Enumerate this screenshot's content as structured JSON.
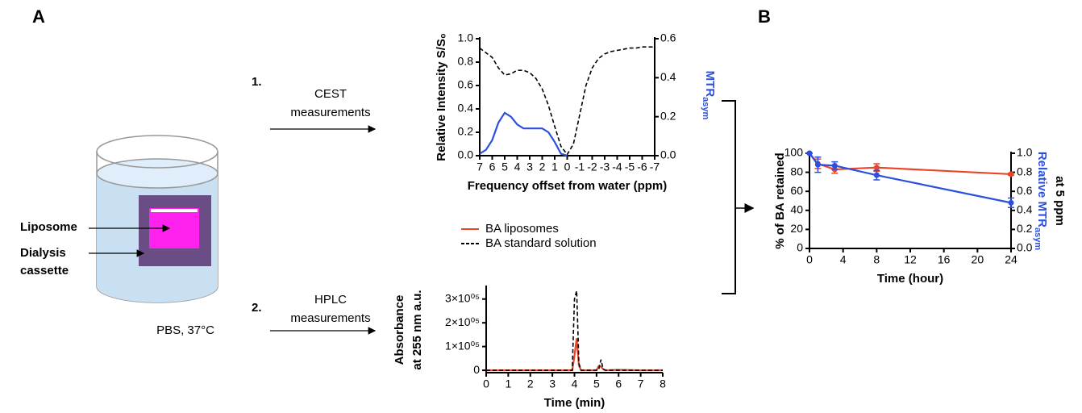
{
  "panel_labels": [
    "A",
    "B"
  ],
  "diagram": {
    "liposome": "Liposome",
    "cassette": [
      "Dialysis",
      "cassette"
    ],
    "medium": "PBS, 37°C",
    "steps": [
      {
        "number": "1.",
        "text": [
          "CEST",
          "measurements"
        ]
      },
      {
        "number": "2.",
        "text": [
          "HPLC",
          "measurements"
        ]
      }
    ]
  },
  "chart_data": [
    {
      "type": "line",
      "xlabel": "Frequency offset from water (ppm)",
      "ylabel": "Relative Intensity S/S₀",
      "y2label": {
        "text": "MTR",
        "sub": "asym"
      },
      "x": [
        7,
        6.5,
        6,
        5.5,
        5,
        4.5,
        4,
        3.5,
        3,
        2.5,
        2,
        1.5,
        1,
        0.5,
        0,
        -0.5,
        -1,
        -1.5,
        -2,
        -2.5,
        -3,
        -3.5,
        -4,
        -4.5,
        -5,
        -5.5,
        -6,
        -6.5,
        -7
      ],
      "xlim": [
        7,
        -7
      ],
      "xticks": [
        7,
        6,
        5,
        4,
        3,
        2,
        1,
        0,
        -1,
        -2,
        -3,
        -4,
        -5,
        -6,
        -7
      ],
      "ylim": [
        0,
        1
      ],
      "yticks": [
        {
          "value": 0,
          "label": "0.0"
        },
        0.2,
        0.4,
        0.6,
        0.8,
        {
          "value": 1,
          "label": "1.0"
        }
      ],
      "y2lim": [
        0,
        0.6
      ],
      "y2ticks": [
        {
          "value": 0,
          "label": "0.0"
        },
        0.2,
        0.4,
        0.6
      ],
      "series": [
        {
          "color": "#000000",
          "dash": true,
          "values": [
            0.92,
            0.88,
            0.84,
            0.75,
            0.69,
            0.7,
            0.73,
            0.73,
            0.71,
            0.66,
            0.57,
            0.43,
            0.25,
            0.08,
            0.01,
            0.1,
            0.35,
            0.6,
            0.75,
            0.83,
            0.87,
            0.89,
            0.9,
            0.91,
            0.92,
            0.92,
            0.93,
            0.93,
            0.93
          ]
        },
        {
          "color": "#2b50e0",
          "axis": "y2",
          "values": [
            0.01,
            0.03,
            0.08,
            0.17,
            0.22,
            0.2,
            0.16,
            0.14,
            0.14,
            0.14,
            0.14,
            0.12,
            0.07,
            0.01,
            0,
            null,
            null,
            null,
            null,
            null,
            null,
            null,
            null,
            null,
            null,
            null,
            null,
            null,
            null
          ]
        }
      ]
    },
    {
      "type": "line",
      "xlabel": "Time (min)",
      "ylabel": [
        "Absorbance",
        "at 255 nm a.u."
      ],
      "x": [
        0,
        1,
        2,
        3,
        3.9,
        4.0,
        4.1,
        4.2,
        4.3,
        5.0,
        5.1,
        5.2,
        5.3,
        5.4,
        6,
        7,
        8
      ],
      "xlim": [
        0,
        8
      ],
      "xticks": [
        0,
        1,
        2,
        3,
        4,
        5,
        6,
        7,
        8
      ],
      "ylim": [
        -10000,
        350000
      ],
      "yticks": [
        0,
        {
          "value": 100000,
          "label": "1×10⁰⁵"
        },
        {
          "value": 200000,
          "label": "2×10⁰⁵"
        },
        {
          "value": 300000,
          "label": "3×10⁰⁵"
        }
      ],
      "legend": "top",
      "series": [
        {
          "name": "BA liposomes",
          "color": "#e8452a",
          "values": [
            0,
            0,
            0,
            0,
            0,
            60000,
            135000,
            20000,
            0,
            0,
            18000,
            15000,
            5000,
            0,
            2000,
            0,
            0
          ]
        },
        {
          "name": "BA standard solution",
          "color": "#000000",
          "dash": true,
          "values": [
            0,
            0,
            0,
            0,
            0,
            300000,
            335000,
            30000,
            0,
            0,
            2000,
            45000,
            5000,
            0,
            0,
            0,
            0
          ]
        }
      ]
    },
    {
      "type": "line",
      "xlabel": "Time (hour)",
      "ylabel": "% of BA retained",
      "ylabel_color": "#e8452a",
      "y2label": {
        "text": "Relative MTR",
        "sub": "asym",
        "line2": "at 5 ppm"
      },
      "y2label_color": "#2b50e0",
      "x": [
        0,
        1,
        3,
        8,
        24
      ],
      "xlim": [
        0,
        24
      ],
      "xticks": [
        0,
        4,
        8,
        12,
        16,
        20,
        24
      ],
      "ylim": [
        0,
        100
      ],
      "yticks": [
        0,
        20,
        40,
        60,
        80,
        100
      ],
      "y2lim": [
        0,
        1
      ],
      "y2ticks": [
        {
          "value": 0,
          "label": "0.0"
        },
        0.2,
        0.4,
        0.6,
        0.8,
        {
          "value": 1,
          "label": "1.0"
        }
      ],
      "series": [
        {
          "color": "#e8452a",
          "marker": true,
          "values": [
            100,
            89,
            83,
            85,
            78
          ],
          "errors": [
            0,
            5,
            4,
            4,
            1
          ]
        },
        {
          "color": "#2b50e0",
          "axis": "y2",
          "marker": true,
          "values": [
            1.0,
            0.88,
            0.87,
            0.77,
            0.48
          ],
          "errors": [
            0,
            0.08,
            0.04,
            0.05,
            0.05
          ]
        }
      ]
    }
  ]
}
